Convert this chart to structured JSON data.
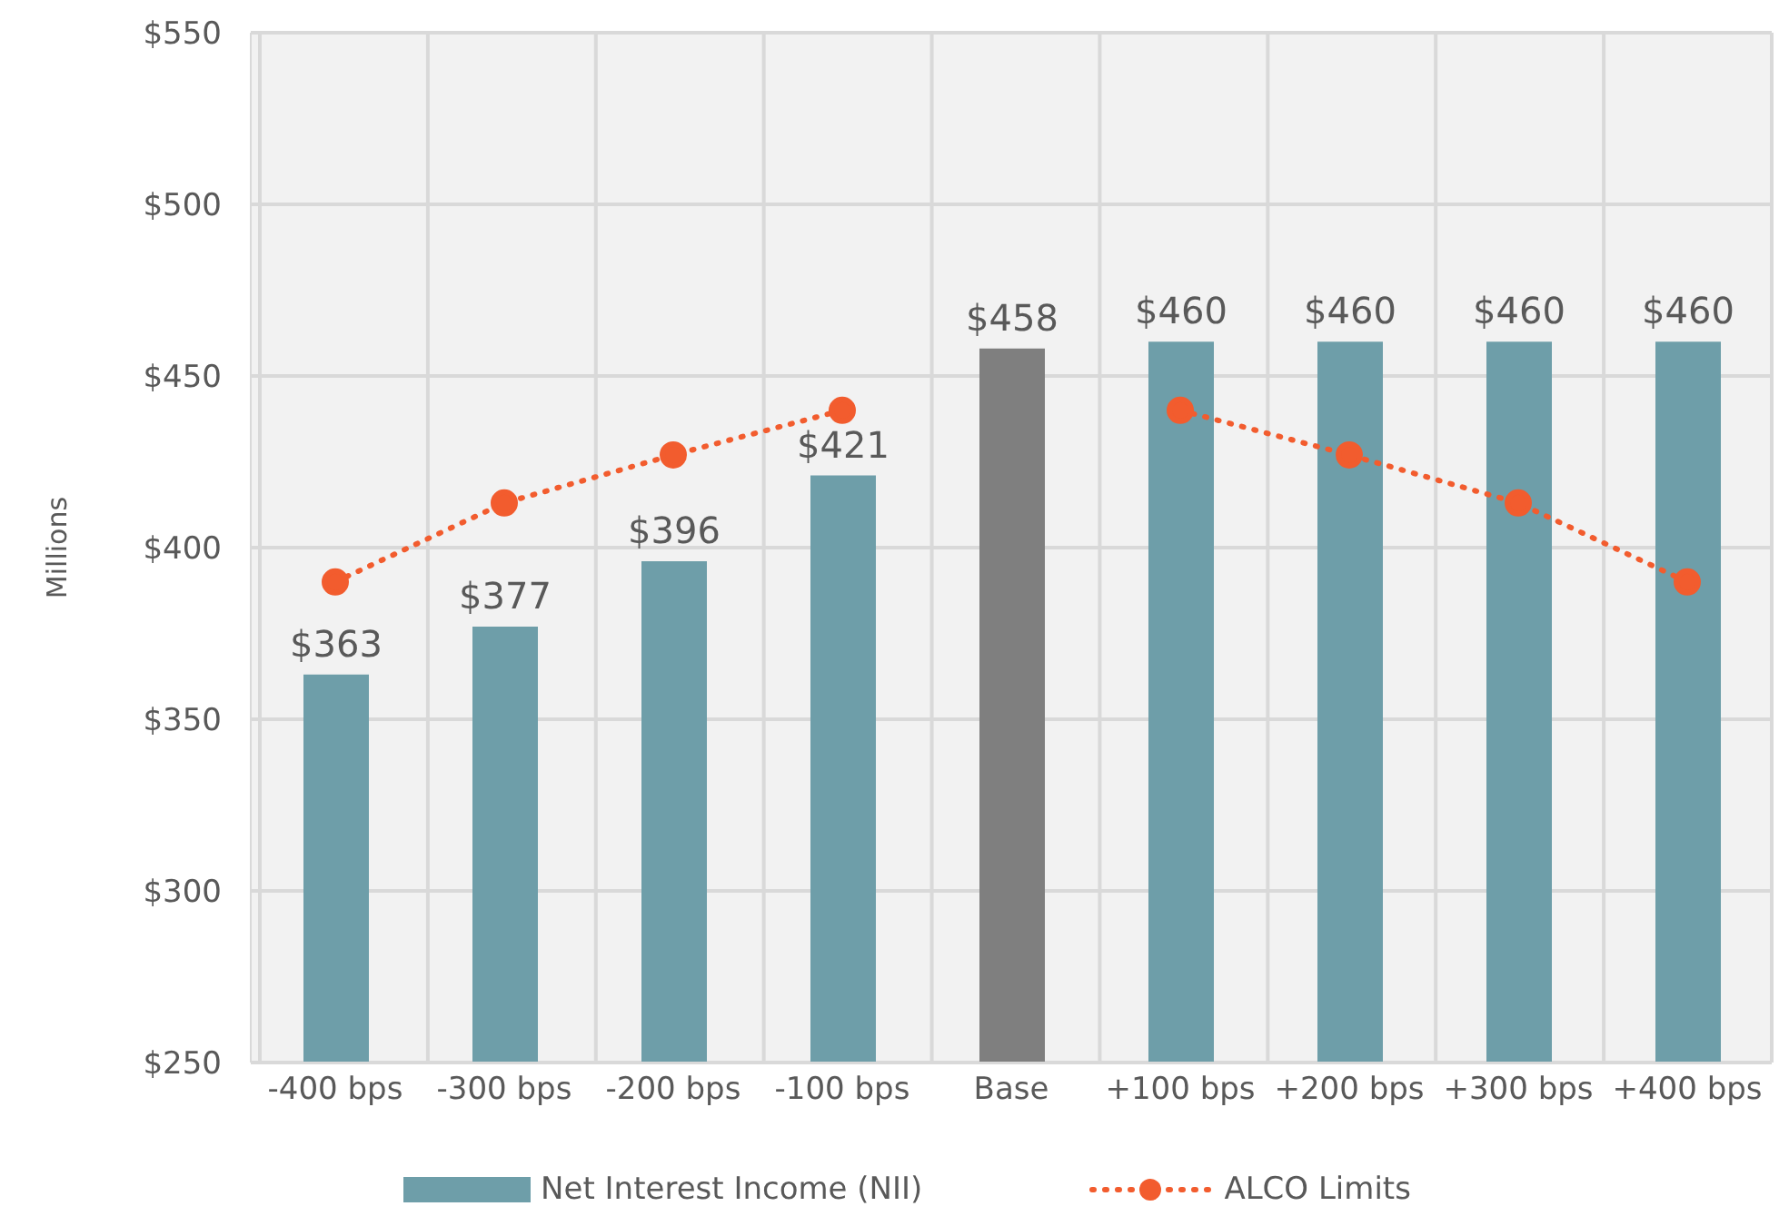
{
  "chart_data": {
    "type": "bar",
    "ylabel": "Millions",
    "categories": [
      "-400 bps",
      "-300 bps",
      "-200 bps",
      "-100 bps",
      "Base",
      "+100 bps",
      "+200 bps",
      "+300 bps",
      "+400 bps"
    ],
    "series": [
      {
        "name": "Net Interest Income (NII)",
        "color": "#6e9ea9",
        "colors": [
          "#6e9ea9",
          "#6e9ea9",
          "#6e9ea9",
          "#6e9ea9",
          "#7f7f7f",
          "#6e9ea9",
          "#6e9ea9",
          "#6e9ea9",
          "#6e9ea9"
        ],
        "values": [
          363,
          377,
          396,
          421,
          458,
          460,
          460,
          460,
          460
        ],
        "value_labels": [
          "$363",
          "$377",
          "$396",
          "$421",
          "$458",
          "$460",
          "$460",
          "$460",
          "$460"
        ]
      },
      {
        "name": "ALCO Limits",
        "type": "line",
        "color": "#f25c2e",
        "line_style": "dotted",
        "marker": "circle",
        "values": [
          390,
          413,
          427,
          440,
          null,
          440,
          427,
          413,
          390
        ]
      }
    ],
    "ylim": [
      250,
      550
    ],
    "yticks": [
      {
        "value": 250,
        "label": "$250"
      },
      {
        "value": 300,
        "label": "$300"
      },
      {
        "value": 350,
        "label": "$350"
      },
      {
        "value": 400,
        "label": "$400"
      },
      {
        "value": 450,
        "label": "$450"
      },
      {
        "value": 500,
        "label": "$500"
      },
      {
        "value": 550,
        "label": "$550"
      }
    ],
    "grid": true,
    "legend": "bottom"
  }
}
